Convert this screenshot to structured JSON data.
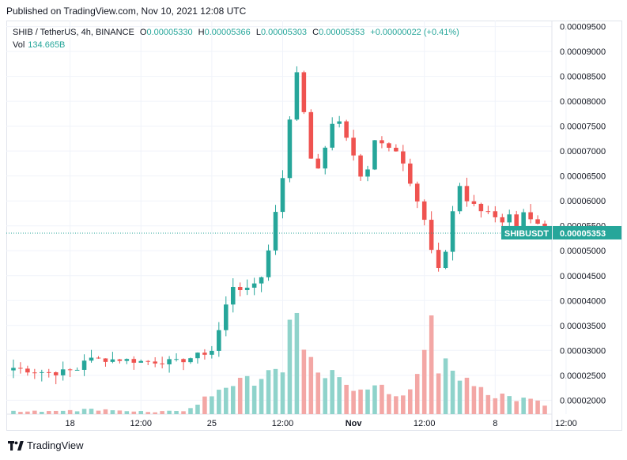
{
  "published": "Published on TradingView.com, Nov 10, 2021 12:08 UTC",
  "legend": {
    "symbol": "SHIB / TetherUS, 4h, BINANCE",
    "open_label": "O",
    "open": "0.00005330",
    "high_label": "H",
    "high": "0.00005366",
    "low_label": "L",
    "low": "0.00005303",
    "close_label": "C",
    "close": "0.00005353",
    "change": "+0.00000022 (+0.41%)",
    "vol_label": "Vol",
    "vol": "134.665B"
  },
  "footer": {
    "brand": "TradingView",
    "logo_icon": "tradingview-logo-icon"
  },
  "colors": {
    "up": "#26a69a",
    "down": "#ef5350",
    "up_vol": "#8fd3cb",
    "down_vol": "#f3a7a5",
    "grid": "#f0f3fa",
    "last_price": "#26a69a"
  },
  "chart_data": {
    "type": "candlestick",
    "symbol": "SHIB / TetherUS, 4h, BINANCE",
    "ylim": [
      1.72e-05,
      9.62e-05
    ],
    "y_ticks": [
      "0.00009500",
      "0.00009000",
      "0.00008500",
      "0.00008000",
      "0.00007500",
      "0.00007000",
      "0.00006500",
      "0.00006000",
      "0.00005500",
      "0.00005000",
      "0.00004500",
      "0.00004000",
      "0.00003500",
      "0.00003000",
      "0.00002500",
      "0.00002000"
    ],
    "x_ticks": [
      "18",
      "12:00",
      "25",
      "12:00",
      "Nov",
      "12:00",
      "8",
      "12:00"
    ],
    "last_price": {
      "label": "SHIBUSDT",
      "value": "0.00005353"
    },
    "close_path": [
      [
        0,
        2.65
      ],
      [
        3,
        2.58
      ],
      [
        6,
        2.55
      ],
      [
        9,
        2.62
      ],
      [
        10,
        2.82
      ],
      [
        15,
        2.82
      ],
      [
        18,
        2.78
      ],
      [
        23,
        2.77
      ],
      [
        25,
        2.85
      ],
      [
        28,
        3.0
      ],
      [
        29,
        3.4
      ],
      [
        30,
        3.9
      ],
      [
        31,
        4.3
      ],
      [
        33,
        4.2
      ],
      [
        35,
        4.5
      ],
      [
        36,
        5.0
      ],
      [
        37,
        5.8
      ],
      [
        38,
        6.5
      ],
      [
        39,
        7.6
      ],
      [
        40,
        8.6
      ],
      [
        41,
        7.8
      ],
      [
        42,
        6.9
      ],
      [
        43,
        6.6
      ],
      [
        44,
        7.1
      ],
      [
        45,
        7.5
      ],
      [
        46,
        7.6
      ],
      [
        47,
        7.3
      ],
      [
        48,
        6.9
      ],
      [
        49,
        6.5
      ],
      [
        50,
        6.6
      ],
      [
        51,
        7.2
      ],
      [
        52,
        7.2
      ],
      [
        53,
        7.1
      ],
      [
        54,
        7.0
      ],
      [
        55,
        6.8
      ],
      [
        56,
        6.4
      ],
      [
        57,
        6.0
      ],
      [
        58,
        5.6
      ],
      [
        59,
        5.0
      ],
      [
        60,
        4.6
      ],
      [
        61,
        5.0
      ],
      [
        62,
        5.8
      ],
      [
        63,
        6.3
      ],
      [
        64,
        6.0
      ],
      [
        65,
        5.9
      ],
      [
        66,
        5.8
      ],
      [
        67,
        5.8
      ],
      [
        68,
        5.7
      ],
      [
        69,
        5.6
      ],
      [
        70,
        5.7
      ],
      [
        71,
        5.5
      ],
      [
        72,
        5.8
      ],
      [
        73,
        5.6
      ],
      [
        74,
        5.5
      ],
      [
        75,
        5.35
      ]
    ],
    "volume_profile": [
      [
        0,
        0.12
      ],
      [
        9,
        0.14
      ],
      [
        10,
        0.2
      ],
      [
        15,
        0.15
      ],
      [
        20,
        0.1
      ],
      [
        24,
        0.15
      ],
      [
        26,
        0.4
      ],
      [
        27,
        0.6
      ],
      [
        28,
        0.9
      ],
      [
        30,
        1.1
      ],
      [
        32,
        1.3
      ],
      [
        34,
        1.2
      ],
      [
        36,
        1.6
      ],
      [
        38,
        2.2
      ],
      [
        39,
        3.1
      ],
      [
        40,
        3.8
      ],
      [
        41,
        2.6
      ],
      [
        42,
        1.9
      ],
      [
        44,
        1.7
      ],
      [
        46,
        1.3
      ],
      [
        48,
        1.2
      ],
      [
        50,
        1.1
      ],
      [
        52,
        1.0
      ],
      [
        54,
        0.9
      ],
      [
        56,
        1.1
      ],
      [
        58,
        2.2
      ],
      [
        59,
        3.3
      ],
      [
        60,
        2.1
      ],
      [
        62,
        2.0
      ],
      [
        64,
        1.3
      ],
      [
        66,
        0.9
      ],
      [
        70,
        0.7
      ],
      [
        72,
        0.6
      ],
      [
        75,
        0.4
      ]
    ]
  }
}
